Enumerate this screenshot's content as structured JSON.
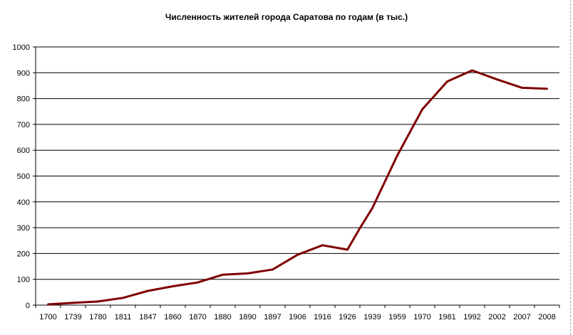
{
  "chart_data": {
    "type": "line",
    "title": "Численность жителей города Саратова по годам (в тыс.)",
    "xlabel": "",
    "ylabel": "",
    "ylim": [
      0,
      1000
    ],
    "yticks": [
      0,
      100,
      200,
      300,
      400,
      500,
      600,
      700,
      800,
      900,
      1000
    ],
    "grid": true,
    "legend": "none",
    "categories": [
      "1700",
      "1739",
      "1780",
      "1811",
      "1847",
      "1860",
      "1870",
      "1880",
      "1890",
      "1897",
      "1906",
      "1916",
      "1926",
      "1939",
      "1959",
      "1970",
      "1981",
      "1992",
      "2002",
      "2007",
      "2008"
    ],
    "series": [
      {
        "color": "#800000",
        "values": [
          3,
          9,
          14,
          28,
          55,
          73,
          88,
          118,
          123,
          138,
          195,
          232,
          215,
          376,
          580,
          758,
          866,
          909,
          874,
          842,
          838
        ],
        "extra_points": [
          {
            "after_index": 16.5,
            "value": 888
          },
          {
            "after_index": 12.5,
            "value": 298
          }
        ]
      }
    ]
  }
}
